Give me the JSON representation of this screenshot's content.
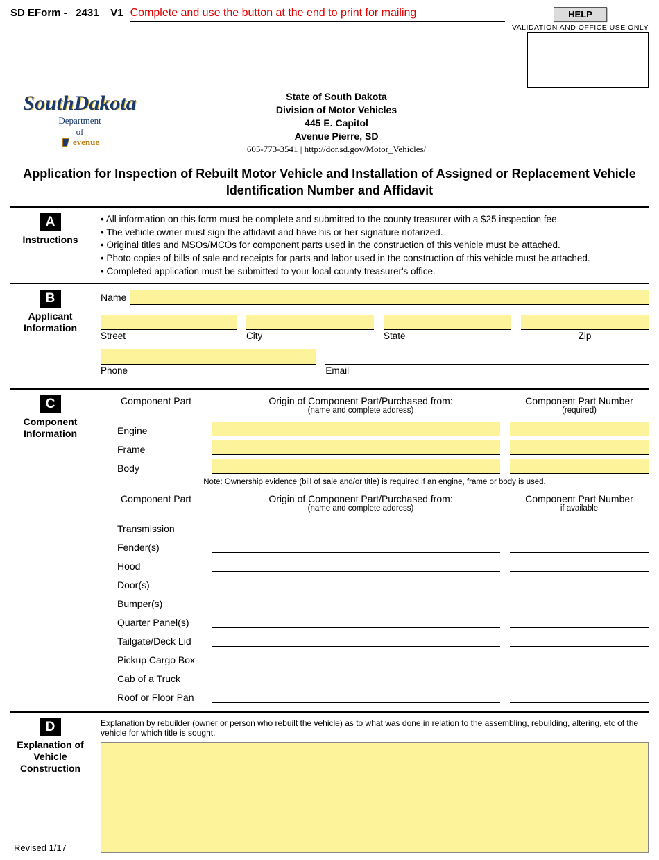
{
  "header": {
    "form_id_prefix": "SD EForm -",
    "form_number": "2431",
    "form_version": "V1",
    "instruction": "Complete and use the button at the end to print for mailing",
    "help_label": "HELP",
    "validation_label": "VALIDATION AND OFFICE USE ONLY"
  },
  "logo": {
    "script": "SouthDakota",
    "dept1": "Department",
    "dept2": "of",
    "dept3": "evenue"
  },
  "agency": {
    "state": "State of South Dakota",
    "division": "Division of Motor Vehicles",
    "address1": "445 E. Capitol",
    "address2": "Avenue Pierre, SD",
    "phone": "605-773-3541",
    "url": "http://dor.sd.gov/Motor_Vehicles/"
  },
  "title": "Application for Inspection of Rebuilt Motor Vehicle and Installation of Assigned or Replacement Vehicle Identification Number and Affidavit",
  "sections": {
    "A": {
      "letter": "A",
      "name": "Instructions",
      "bullets": [
        "• All information on this form must be complete and submitted to the county treasurer with a $25 inspection fee.",
        "• The vehicle owner must sign the affidavit and have his or her signature notarized.",
        "• Original titles and MSOs/MCOs for component parts used in the construction of this vehicle must be attached.",
        "• Photo copies of bills of sale and receipts for parts and labor used in the construction of this vehicle must be attached.",
        "• Completed application must be submitted to your local county treasurer's office."
      ]
    },
    "B": {
      "letter": "B",
      "name": "Applicant Information",
      "labels": {
        "name": "Name",
        "street": "Street",
        "city": "City",
        "state": "State",
        "zip": "Zip",
        "phone": "Phone",
        "email": "Email"
      },
      "values": {
        "name": "",
        "street": "",
        "city": "",
        "state": "",
        "zip": "",
        "phone": "",
        "email": ""
      }
    },
    "C": {
      "letter": "C",
      "name": "Component Information",
      "col_headers": {
        "part": "Component Part",
        "origin": "Origin of Component Part/Purchased from:",
        "origin_sub": "(name and complete address)",
        "num_required": "Component Part Number",
        "num_required_sub": "(required)",
        "num_available": "Component Part Number",
        "num_available_sub": "if available"
      },
      "required_parts": [
        "Engine",
        "Frame",
        "Body"
      ],
      "note": "Note: Ownership evidence (bill of sale and/or title) is required if an engine, frame or body is used.",
      "optional_parts": [
        "Transmission",
        "Fender(s)",
        "Hood",
        "Door(s)",
        "Bumper(s)",
        "Quarter Panel(s)",
        "Tailgate/Deck Lid",
        "Pickup Cargo Box",
        "Cab of a Truck",
        "Roof or Floor Pan"
      ]
    },
    "D": {
      "letter": "D",
      "name": "Explanation of Vehicle Construction",
      "intro": "Explanation by rebuilder (owner or person who rebuilt the vehicle) as to what was done in relation to the assembling, rebuilding, altering, etc of the vehicle for which title is sought.",
      "value": ""
    }
  },
  "footer": {
    "revised": "Revised 1/17"
  },
  "colors": {
    "highlight": "#fdf39a",
    "red": "#e00000",
    "navy": "#1b3a6b",
    "gold": "#b87a12"
  }
}
